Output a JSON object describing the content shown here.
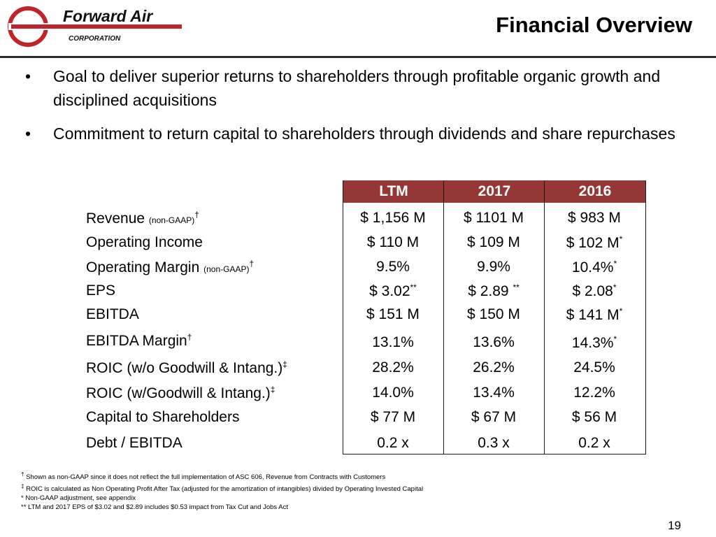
{
  "header": {
    "logo_text": "Forward Air",
    "logo_sub": "CORPORATION",
    "title": "Financial Overview"
  },
  "bullets": [
    "Goal to deliver superior returns to shareholders through profitable organic growth and disciplined acquisitions",
    "Commitment to return capital to shareholders through dividends and share repurchases"
  ],
  "bullet_symbol": "•",
  "table": {
    "columns": [
      "LTM",
      "2017",
      "2016"
    ],
    "header_color": "#953735",
    "rows": [
      {
        "label": "Revenue",
        "qualifier": "(non-GAAP)",
        "mark": "†",
        "values": [
          "$ 1,156 M",
          "$ 1101 M",
          "$ 983 M"
        ],
        "marks": [
          "",
          "",
          ""
        ]
      },
      {
        "label": "Operating Income",
        "qualifier": "",
        "mark": "",
        "values": [
          "$ 110 M",
          "$ 109 M",
          "$ 102 M"
        ],
        "marks": [
          "",
          "",
          "*"
        ]
      },
      {
        "label": "Operating Margin",
        "qualifier": "(non-GAAP)",
        "mark": "†",
        "values": [
          "9.5%",
          "9.9%",
          "10.4%"
        ],
        "marks": [
          "",
          "",
          "*"
        ]
      },
      {
        "label": "EPS",
        "qualifier": "",
        "mark": "",
        "values": [
          "$ 3.02",
          "$ 2.89",
          "$ 2.08"
        ],
        "marks": [
          "**",
          "**",
          "*"
        ]
      },
      {
        "label": "EBITDA",
        "qualifier": "",
        "mark": "",
        "values": [
          "$ 151 M",
          "$ 150 M",
          "$ 141 M"
        ],
        "marks": [
          "",
          "",
          "*"
        ]
      },
      {
        "label": "EBITDA Margin",
        "qualifier": "",
        "mark": "†",
        "values": [
          "13.1%",
          "13.6%",
          "14.3%"
        ],
        "marks": [
          "",
          "",
          "*"
        ]
      },
      {
        "label": "ROIC  (w/o Goodwill & Intang.)",
        "qualifier": "",
        "mark": "‡",
        "values": [
          "28.2%",
          "26.2%",
          "24.5%"
        ],
        "marks": [
          "",
          "",
          ""
        ]
      },
      {
        "label": "ROIC  (w/Goodwill & Intang.)",
        "qualifier": "",
        "mark": "‡",
        "values": [
          "14.0%",
          "13.4%",
          "12.2%"
        ],
        "marks": [
          "",
          "",
          ""
        ]
      },
      {
        "label": "Capital to Shareholders",
        "qualifier": "",
        "mark": "",
        "values": [
          "$ 77 M",
          "$ 67 M",
          "$ 56 M"
        ],
        "marks": [
          "",
          "",
          ""
        ]
      },
      {
        "label": "Debt / EBITDA",
        "qualifier": "",
        "mark": "",
        "values": [
          "0.2 x",
          "0.3 x",
          "0.2 x"
        ],
        "marks": [
          "",
          "",
          ""
        ]
      }
    ]
  },
  "footnotes": [
    {
      "mark": "†",
      "text": "Shown as non-GAAP since it does not reflect the full implementation of ASC 606, Revenue from Contracts with Customers"
    },
    {
      "mark": "‡",
      "text": "ROIC is calculated as Non Operating Profit After Tax (adjusted for the amortization of intangibles) divided by Operating Invested Capital"
    },
    {
      "mark": "*",
      "text": "Non-GAAP adjustment, see appendix"
    },
    {
      "mark": "**",
      "text": "LTM and 2017 EPS of $3.02 and $2.89 includes $0.53 impact from Tax Cut and Jobs Act"
    }
  ],
  "page_number": "19"
}
